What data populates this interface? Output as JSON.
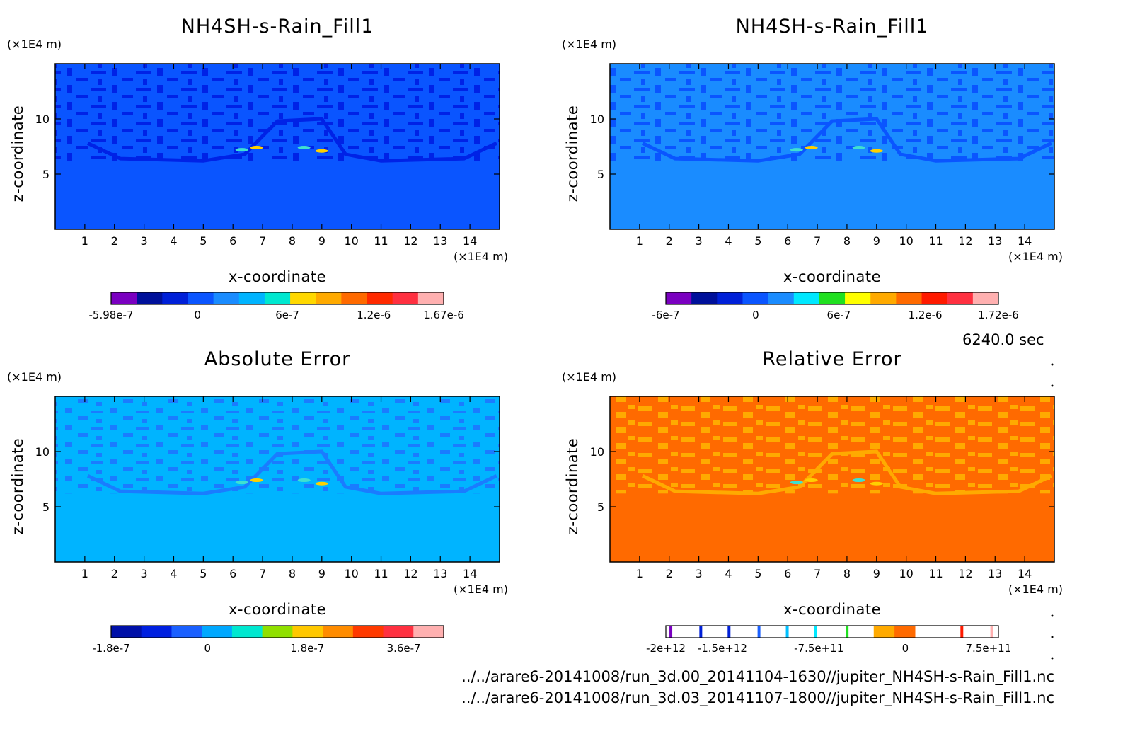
{
  "colors": {
    "axes": "#000000",
    "base_top_left": "#0a55ff",
    "pattern_top_left": "#0022e6",
    "base_top_right": "#1a8cff",
    "pattern_top_right": "#0a55ff",
    "base_bottom_left": "#00b4ff",
    "pattern_bottom_left": "#1a7cff",
    "base_bottom_right": "#ff6a00",
    "pattern_bottom_right": "#ffaa00"
  },
  "time_label": "6240.0 sec",
  "files": [
    "../../arare6-20141008/run_3d.00_20141104-1630//jupiter_NH4SH-s-Rain_Fill1.nc",
    "../../arare6-20141008/run_3d.03_20141107-1800//jupiter_NH4SH-s-Rain_Fill1.nc"
  ],
  "chart_data": [
    {
      "type": "heatmap",
      "title": "NH4SH-s-Rain_Fill1",
      "xlabel": "x-coordinate",
      "ylabel": "z-coordinate",
      "x_unit": "(×1E4 m)",
      "y_unit": "(×1E4 m)",
      "xlim": [
        0,
        15
      ],
      "ylim": [
        0,
        15
      ],
      "x_ticks": [
        1,
        2,
        3,
        4,
        5,
        6,
        7,
        8,
        9,
        10,
        11,
        12,
        13,
        14
      ],
      "y_ticks": [
        5,
        10
      ],
      "colorbar": {
        "colors": [
          "#7a00c0",
          "#00109a",
          "#0020d8",
          "#0a55ff",
          "#1a8cff",
          "#00b4ff",
          "#00e8d0",
          "#ffd800",
          "#ffaa00",
          "#ff6a00",
          "#ff2a00",
          "#ff3040",
          "#ffb0b0"
        ],
        "labels": [
          {
            "text": "-5.98e-7",
            "pos": 0.0
          },
          {
            "text": "0",
            "pos": 0.26
          },
          {
            "text": "6e-7",
            "pos": 0.53
          },
          {
            "text": "1.2e-6",
            "pos": 0.79
          },
          {
            "text": "1.67e-6",
            "pos": 1.0
          }
        ]
      }
    },
    {
      "type": "heatmap",
      "title": "NH4SH-s-Rain_Fill1",
      "xlabel": "x-coordinate",
      "ylabel": "z-coordinate",
      "x_unit": "(×1E4 m)",
      "y_unit": "(×1E4 m)",
      "xlim": [
        0,
        15
      ],
      "ylim": [
        0,
        15
      ],
      "x_ticks": [
        1,
        2,
        3,
        4,
        5,
        6,
        7,
        8,
        9,
        10,
        11,
        12,
        13,
        14
      ],
      "y_ticks": [
        5,
        10
      ],
      "colorbar": {
        "colors": [
          "#7a00c0",
          "#00109a",
          "#0020d8",
          "#0a55ff",
          "#1a8cff",
          "#00e8ff",
          "#20e020",
          "#ffff00",
          "#ffaa00",
          "#ff6a00",
          "#ff1a00",
          "#ff3040",
          "#ffb0b0"
        ],
        "labels": [
          {
            "text": "-6e-7",
            "pos": 0.0
          },
          {
            "text": "0",
            "pos": 0.27
          },
          {
            "text": "6e-7",
            "pos": 0.52
          },
          {
            "text": "1.2e-6",
            "pos": 0.78
          },
          {
            "text": "1.72e-6",
            "pos": 1.0
          }
        ]
      }
    },
    {
      "type": "heatmap",
      "title": "Absolute Error",
      "xlabel": "x-coordinate",
      "ylabel": "z-coordinate",
      "x_unit": "(×1E4 m)",
      "y_unit": "(×1E4 m)",
      "xlim": [
        0,
        15
      ],
      "ylim": [
        0,
        15
      ],
      "x_ticks": [
        1,
        2,
        3,
        4,
        5,
        6,
        7,
        8,
        9,
        10,
        11,
        12,
        13,
        14
      ],
      "y_ticks": [
        5,
        10
      ],
      "colorbar": {
        "colors": [
          "#0010a8",
          "#0020e0",
          "#1a60ff",
          "#00a8ff",
          "#00e8d0",
          "#90e000",
          "#ffc800",
          "#ff8c00",
          "#ff3a00",
          "#ff3040",
          "#ffb0b0"
        ],
        "labels": [
          {
            "text": "-1.8e-7",
            "pos": 0.0
          },
          {
            "text": "0",
            "pos": 0.29
          },
          {
            "text": "1.8e-7",
            "pos": 0.59
          },
          {
            "text": "3.6e-7",
            "pos": 0.88
          }
        ]
      }
    },
    {
      "type": "heatmap",
      "title": "Relative Error",
      "xlabel": "x-coordinate",
      "ylabel": "z-coordinate",
      "x_unit": "(×1E4 m)",
      "y_unit": "(×1E4 m)",
      "xlim": [
        0,
        15
      ],
      "ylim": [
        0,
        15
      ],
      "x_ticks": [
        1,
        2,
        3,
        4,
        5,
        6,
        7,
        8,
        9,
        10,
        11,
        12,
        13,
        14
      ],
      "y_ticks": [
        5,
        10
      ],
      "colorbar": {
        "colors": [
          "#ffffff",
          "#ffffff",
          "#ffffff",
          "#ffffff",
          "#ffffff",
          "#ffffff",
          "#ffffff",
          "#ffffff",
          "#ffffff",
          "#ffffff",
          "#ffaa00",
          "#ff6a00",
          "#ffffff",
          "#ffffff",
          "#ffffff",
          "#ffffff"
        ],
        "stripes": [
          {
            "pos": 0.015,
            "color": "#7a00c0"
          },
          {
            "pos": 0.105,
            "color": "#0020d8"
          },
          {
            "pos": 0.19,
            "color": "#0020d8"
          },
          {
            "pos": 0.28,
            "color": "#1a60ff"
          },
          {
            "pos": 0.365,
            "color": "#00c0ff"
          },
          {
            "pos": 0.45,
            "color": "#00e8ff"
          },
          {
            "pos": 0.545,
            "color": "#20e020"
          },
          {
            "pos": 0.89,
            "color": "#ff1a00"
          },
          {
            "pos": 0.98,
            "color": "#ffb0b0"
          }
        ],
        "labels": [
          {
            "text": "-2e+12",
            "pos": 0.0
          },
          {
            "text": "-1.5e+12",
            "pos": 0.17
          },
          {
            "text": "-7.5e+11",
            "pos": 0.46
          },
          {
            "text": "0",
            "pos": 0.72
          },
          {
            "text": "7.5e+11",
            "pos": 0.97
          }
        ]
      }
    }
  ]
}
